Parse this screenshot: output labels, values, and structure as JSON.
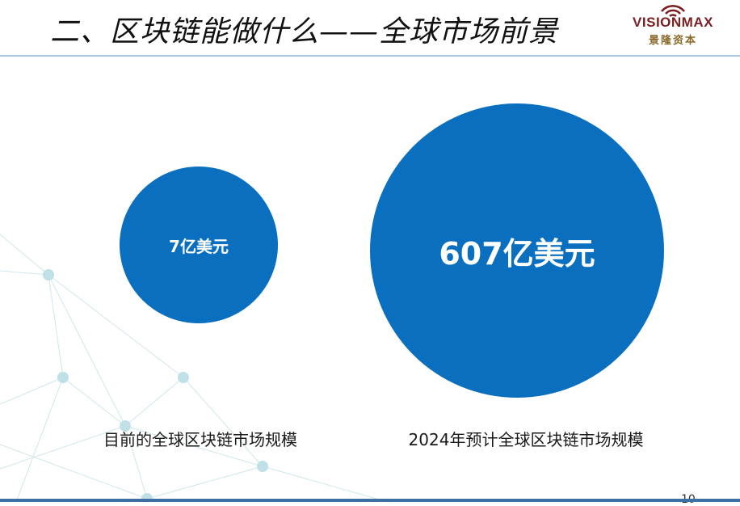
{
  "slide": {
    "title": "二、区块链能做什么——全球市场前景",
    "page_number": "10"
  },
  "logo": {
    "icon": "wifi-signal-icon",
    "name_en": "VISIONMAX",
    "name_cn": "景隆资本",
    "color": "#7a1f22"
  },
  "market": {
    "current": {
      "value_label": "7亿美元",
      "caption": "目前的全球区块链市场规模"
    },
    "forecast": {
      "value_label": "607亿美元",
      "caption": "2024年预计全球区块链市场规模"
    },
    "circle_color": "#0b6fc0"
  }
}
